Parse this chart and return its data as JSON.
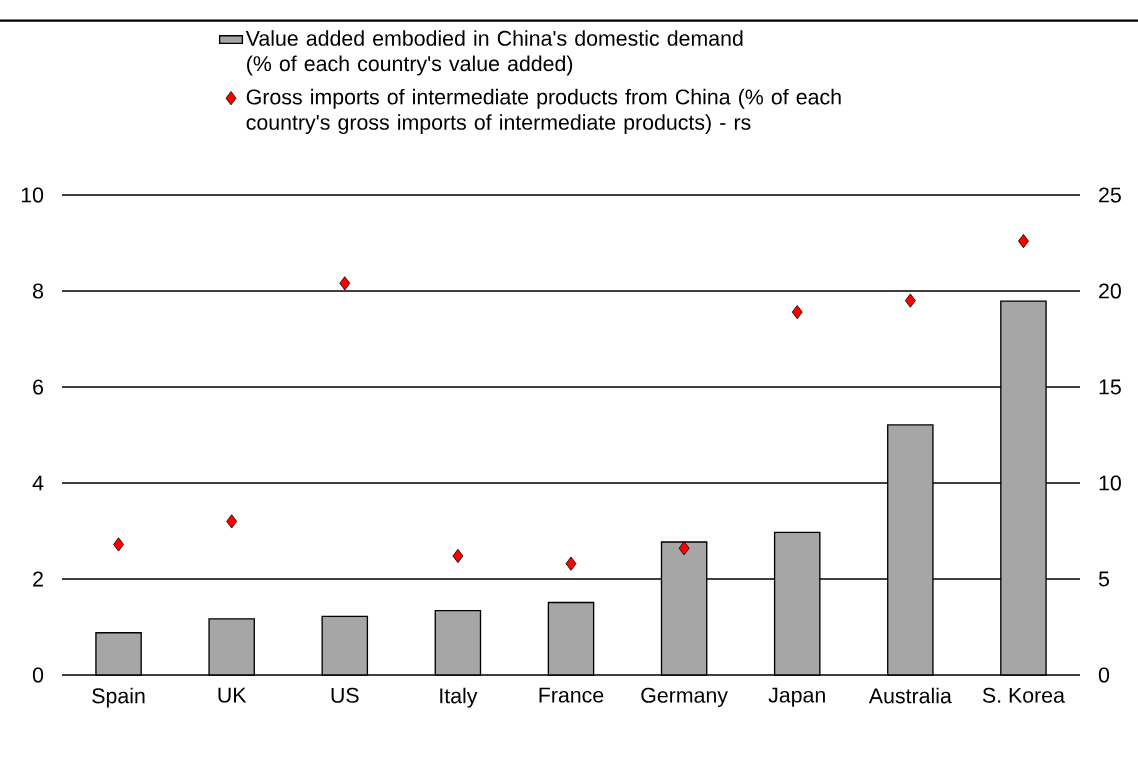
{
  "chart_data": {
    "type": "bar",
    "categories": [
      "Spain",
      "UK",
      "US",
      "Italy",
      "France",
      "Germany",
      "Japan",
      "Australia",
      "S. Korea"
    ],
    "series": [
      {
        "name": "Value added embodied in China's domestic demand (% of each country's value added)",
        "color": "#a6a6a6",
        "values": [
          0.88,
          1.17,
          1.22,
          1.34,
          1.51,
          2.77,
          2.97,
          5.21,
          7.79
        ]
      },
      {
        "name": "Gross imports of intermediate products from China (% of each country's gross imports of intermediate products) - rs",
        "type": "scatter",
        "axis": "y2",
        "color": "#ff0000",
        "values": [
          6.8,
          8.0,
          20.4,
          6.2,
          5.8,
          6.6,
          18.9,
          19.5,
          22.6
        ]
      }
    ],
    "ylim": [
      0,
      10
    ],
    "yticks": [
      0,
      2,
      4,
      6,
      8,
      10
    ],
    "y2lim": [
      0,
      25
    ],
    "y2ticks": [
      0,
      5,
      10,
      15,
      20,
      25
    ],
    "grid": "y",
    "legend": "top",
    "marker": "diamond"
  }
}
